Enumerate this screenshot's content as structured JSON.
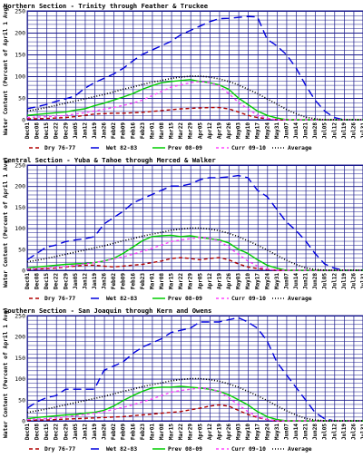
{
  "chart_data": [
    {
      "type": "line",
      "title": "Northern Section - Trinity through Feather & Truckee",
      "ylabel": "Water Content (Percent of April 1 Avg)",
      "xlabel": "",
      "ylim": [
        0,
        250
      ],
      "yticks": [
        0,
        50,
        100,
        150,
        200,
        250
      ],
      "grid": true,
      "legend_position": "bottom",
      "categories": [
        "Dec01",
        "Dec08",
        "Dec15",
        "Dec22",
        "Dec29",
        "Jan05",
        "Jan12",
        "Jan19",
        "Jan26",
        "Feb02",
        "Feb09",
        "Feb16",
        "Feb23",
        "Mar01",
        "Mar08",
        "Mar15",
        "Mar22",
        "Mar29",
        "Apr05",
        "Apr12",
        "Apr19",
        "Apr26",
        "May03",
        "May10",
        "May17",
        "May24",
        "May31",
        "Jun07",
        "Jun14",
        "Jun21",
        "Jun28",
        "Jul05",
        "Jul12",
        "Jul19",
        "Jul26",
        "Jul31"
      ],
      "series": [
        {
          "name": "Dry 76-77",
          "color": "#b00000",
          "dash": "4,3",
          "values": [
            2,
            2,
            3,
            4,
            5,
            7,
            10,
            13,
            14,
            15,
            15,
            16,
            17,
            19,
            21,
            23,
            25,
            26,
            27,
            28,
            28,
            25,
            18,
            10,
            5,
            2,
            0,
            0,
            0,
            0,
            0,
            0,
            0,
            0,
            0,
            0
          ]
        },
        {
          "name": "Wet 82-83",
          "color": "#0000dd",
          "dash": "9,5",
          "values": [
            25,
            30,
            35,
            42,
            48,
            55,
            72,
            85,
            95,
            105,
            118,
            135,
            150,
            160,
            170,
            180,
            195,
            205,
            215,
            225,
            232,
            233,
            235,
            237,
            236,
            185,
            170,
            150,
            120,
            80,
            45,
            20,
            5,
            0,
            0,
            0
          ]
        },
        {
          "name": "Prev 08-09",
          "color": "#00cc00",
          "dash": "",
          "values": [
            10,
            12,
            14,
            16,
            18,
            22,
            25,
            32,
            38,
            45,
            52,
            60,
            70,
            78,
            85,
            88,
            90,
            92,
            88,
            85,
            80,
            70,
            50,
            35,
            20,
            10,
            4,
            0,
            0,
            0,
            0,
            0,
            0,
            0,
            0,
            0
          ]
        },
        {
          "name": "Curr 09-10",
          "color": "#ff44ff",
          "dash": "3,3",
          "values": [
            5,
            6,
            7,
            8,
            10,
            13,
            16,
            20,
            24,
            28,
            33,
            38,
            45,
            55,
            65,
            75,
            80,
            85,
            88,
            85,
            78,
            60,
            40,
            25,
            10,
            3,
            0,
            0,
            0,
            0,
            0,
            0,
            0,
            0,
            0,
            0
          ]
        },
        {
          "name": "Average",
          "color": "#000000",
          "dash": "1,2",
          "values": [
            20,
            24,
            28,
            33,
            38,
            43,
            48,
            53,
            58,
            64,
            70,
            75,
            81,
            86,
            90,
            95,
            98,
            100,
            100,
            98,
            94,
            88,
            80,
            70,
            60,
            48,
            36,
            24,
            14,
            6,
            2,
            0,
            0,
            0,
            0,
            0
          ]
        }
      ]
    },
    {
      "type": "line",
      "title": "Central Section - Yuba & Tahoe through Merced & Walker",
      "ylabel": "Water Content (Percent of April 1 Avg)",
      "xlabel": "",
      "ylim": [
        0,
        250
      ],
      "yticks": [
        0,
        50,
        100,
        150,
        200,
        250
      ],
      "grid": true,
      "legend_position": "bottom",
      "categories": [
        "Dec01",
        "Dec08",
        "Dec15",
        "Dec22",
        "Dec29",
        "Jan05",
        "Jan12",
        "Jan19",
        "Jan26",
        "Feb02",
        "Feb09",
        "Feb16",
        "Feb23",
        "Mar01",
        "Mar08",
        "Mar15",
        "Mar22",
        "Mar29",
        "Apr05",
        "Apr12",
        "Apr19",
        "Apr26",
        "May03",
        "May10",
        "May17",
        "May24",
        "May31",
        "Jun07",
        "Jun14",
        "Jun21",
        "Jun28",
        "Jul05",
        "Jul12",
        "Jul19",
        "Jul26",
        "Jul31"
      ],
      "series": [
        {
          "name": "Dry 76-77",
          "color": "#b00000",
          "dash": "4,3",
          "values": [
            2,
            3,
            4,
            5,
            8,
            10,
            12,
            12,
            10,
            8,
            10,
            12,
            14,
            18,
            22,
            28,
            30,
            28,
            25,
            28,
            30,
            25,
            15,
            8,
            4,
            2,
            0,
            0,
            0,
            0,
            0,
            0,
            0,
            0,
            0,
            0
          ]
        },
        {
          "name": "Wet 82-83",
          "color": "#0000dd",
          "dash": "9,5",
          "values": [
            25,
            40,
            55,
            60,
            68,
            72,
            75,
            80,
            110,
            125,
            140,
            160,
            170,
            180,
            190,
            200,
            200,
            205,
            215,
            220,
            220,
            222,
            225,
            220,
            190,
            175,
            145,
            115,
            95,
            70,
            40,
            15,
            5,
            0,
            0,
            0
          ]
        },
        {
          "name": "Prev 08-09",
          "color": "#00cc00",
          "dash": "",
          "values": [
            5,
            8,
            10,
            12,
            14,
            15,
            16,
            18,
            22,
            28,
            40,
            55,
            70,
            80,
            82,
            83,
            80,
            82,
            78,
            75,
            72,
            65,
            50,
            40,
            25,
            12,
            5,
            0,
            0,
            0,
            0,
            0,
            0,
            0,
            0,
            0
          ]
        },
        {
          "name": "Curr 09-10",
          "color": "#ff44ff",
          "dash": "3,3",
          "values": [
            3,
            4,
            5,
            7,
            9,
            12,
            15,
            18,
            22,
            27,
            32,
            38,
            45,
            52,
            60,
            68,
            72,
            75,
            78,
            76,
            70,
            55,
            38,
            22,
            10,
            3,
            0,
            0,
            0,
            0,
            0,
            0,
            0,
            0,
            0,
            0
          ]
        },
        {
          "name": "Average",
          "color": "#000000",
          "dash": "1,2",
          "values": [
            20,
            24,
            28,
            33,
            38,
            43,
            48,
            53,
            58,
            64,
            70,
            75,
            81,
            86,
            90,
            95,
            98,
            100,
            100,
            98,
            94,
            88,
            80,
            70,
            60,
            48,
            36,
            24,
            14,
            6,
            2,
            0,
            0,
            0,
            0,
            0
          ]
        }
      ]
    },
    {
      "type": "line",
      "title": "Southern Section - San Joaquin through Kern and Owens",
      "ylabel": "Water Content (Percent of April 1 Avg)",
      "xlabel": "",
      "ylim": [
        0,
        250
      ],
      "yticks": [
        0,
        50,
        100,
        150,
        200,
        250
      ],
      "grid": true,
      "legend_position": "bottom",
      "categories": [
        "Dec01",
        "Dec08",
        "Dec15",
        "Dec22",
        "Dec29",
        "Jan05",
        "Jan12",
        "Jan19",
        "Jan26",
        "Feb02",
        "Feb09",
        "Feb16",
        "Feb23",
        "Mar01",
        "Mar08",
        "Mar15",
        "Mar22",
        "Mar29",
        "Apr05",
        "Apr12",
        "Apr19",
        "Apr26",
        "May03",
        "May10",
        "May17",
        "May24",
        "May31",
        "Jun07",
        "Jun14",
        "Jun21",
        "Jun28",
        "Jul05",
        "Jul12",
        "Jul19",
        "Jul26",
        "Jul31"
      ],
      "series": [
        {
          "name": "Dry 76-77",
          "color": "#b00000",
          "dash": "4,3",
          "values": [
            1,
            2,
            2,
            3,
            4,
            5,
            6,
            7,
            8,
            9,
            10,
            12,
            14,
            16,
            18,
            20,
            22,
            26,
            30,
            35,
            38,
            35,
            25,
            15,
            8,
            3,
            0,
            0,
            0,
            0,
            0,
            0,
            0,
            0,
            0,
            0
          ]
        },
        {
          "name": "Wet 82-83",
          "color": "#0000dd",
          "dash": "9,5",
          "values": [
            30,
            45,
            55,
            60,
            75,
            75,
            75,
            75,
            120,
            130,
            140,
            160,
            175,
            185,
            195,
            210,
            215,
            220,
            235,
            235,
            235,
            240,
            245,
            235,
            220,
            190,
            140,
            110,
            80,
            50,
            20,
            5,
            0,
            0,
            0,
            0
          ]
        },
        {
          "name": "Prev 08-09",
          "color": "#00cc00",
          "dash": "",
          "values": [
            5,
            8,
            10,
            12,
            14,
            15,
            18,
            20,
            25,
            35,
            48,
            60,
            70,
            78,
            80,
            80,
            82,
            80,
            78,
            75,
            70,
            62,
            50,
            38,
            22,
            10,
            3,
            0,
            0,
            0,
            0,
            0,
            0,
            0,
            0,
            0
          ]
        },
        {
          "name": "Curr 09-10",
          "color": "#ff44ff",
          "dash": "3,3",
          "values": [
            3,
            4,
            5,
            7,
            9,
            12,
            15,
            18,
            22,
            27,
            32,
            38,
            45,
            52,
            60,
            68,
            72,
            75,
            78,
            76,
            70,
            55,
            38,
            22,
            10,
            3,
            0,
            0,
            0,
            0,
            0,
            0,
            0,
            0,
            0,
            0
          ]
        },
        {
          "name": "Average",
          "color": "#000000",
          "dash": "1,2",
          "values": [
            20,
            24,
            28,
            33,
            38,
            43,
            48,
            53,
            58,
            64,
            70,
            75,
            81,
            86,
            90,
            95,
            98,
            100,
            100,
            98,
            94,
            88,
            80,
            70,
            60,
            48,
            36,
            24,
            14,
            6,
            2,
            0,
            0,
            0,
            0,
            0
          ]
        }
      ]
    }
  ],
  "colors": {
    "plot_background": "#ffffff",
    "grid": "#1a1a8c",
    "axis": "#000000",
    "text": "#000000"
  }
}
